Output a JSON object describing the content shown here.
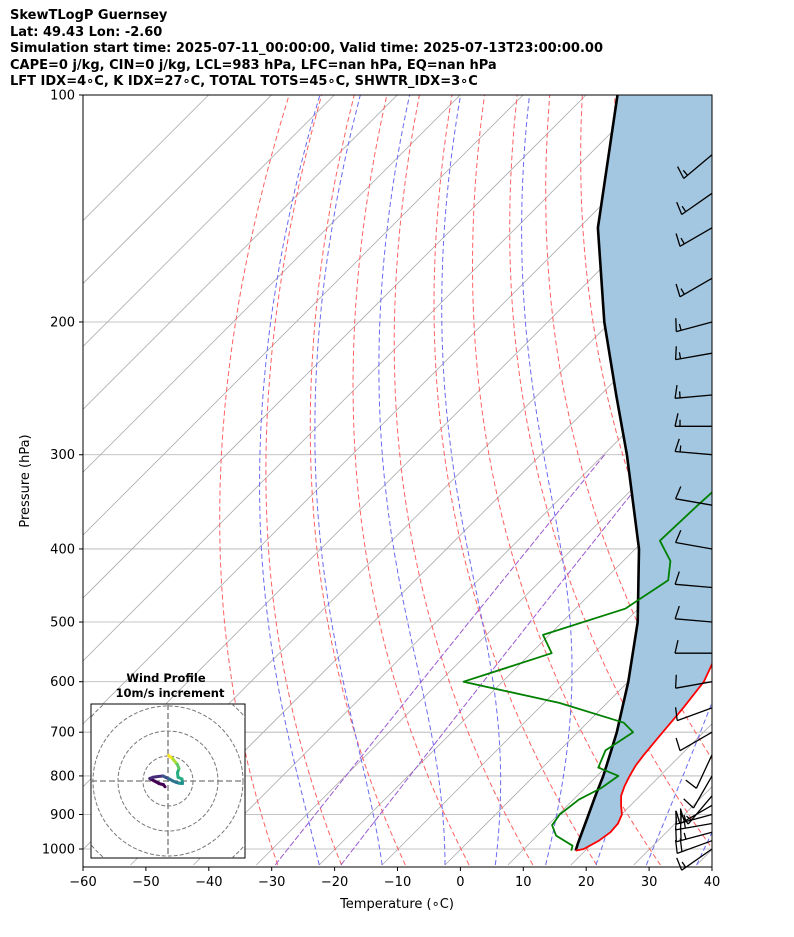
{
  "header": {
    "line1": "SkewTLogP Guernsey",
    "line2": "Lat: 49.43   Lon: -2.60",
    "line3": "Simulation start time: 2025-07-11_00:00:00, Valid time: 2025-07-13T23:00:00.00",
    "line4": "CAPE=0 j/kg, CIN=0 j/kg, LCL=983 hPa, LFC=nan hPa, EQ=nan hPa",
    "line5": "LFT IDX=4∘C, K IDX=27∘C, TOTAL TOTS=45∘C, SHWTR_IDX=3∘C"
  },
  "colors": {
    "temperature": "#ff0000",
    "dewpoint": "#008000",
    "parcel": "#000000",
    "shading": "#a3c7e0",
    "dry_adiabat": "#ff6060",
    "moist_adiabat": "#6a6af0",
    "mixing_ratio": "#9b59d0",
    "isotherm": "#aaaaaa"
  },
  "chart_data": {
    "type": "line",
    "title": "SkewTLogP Guernsey",
    "xlabel": "Temperature (∘C)",
    "ylabel": "Pressure (hPa)",
    "xlim": [
      -60,
      40
    ],
    "ylim": [
      1050,
      100
    ],
    "x_ticks": [
      -60,
      -50,
      -40,
      -30,
      -20,
      -10,
      0,
      10,
      20,
      30,
      40
    ],
    "x_tick_labels": [
      "−60",
      "−50",
      "−40",
      "−30",
      "−20",
      "−10",
      "0",
      "10",
      "20",
      "30",
      "40"
    ],
    "y_ticks": [
      100,
      200,
      300,
      400,
      500,
      600,
      700,
      800,
      900,
      1000
    ],
    "y_tick_labels": [
      "100",
      "200",
      "300",
      "400",
      "500",
      "600",
      "700",
      "800",
      "900",
      "1000"
    ],
    "grid": true,
    "series": [
      {
        "name": "Temperature",
        "points": [
          [
            1005,
            18.5
          ],
          [
            1000,
            19.5
          ],
          [
            975,
            20.6
          ],
          [
            950,
            21.1
          ],
          [
            925,
            20.9
          ],
          [
            900,
            20.1
          ],
          [
            875,
            18.5
          ],
          [
            850,
            17.0
          ],
          [
            825,
            16.0
          ],
          [
            800,
            15.2
          ],
          [
            775,
            14.5
          ],
          [
            750,
            14.1
          ],
          [
            700,
            13.5
          ],
          [
            650,
            12.9
          ],
          [
            600,
            12.0
          ],
          [
            550,
            9.6
          ],
          [
            500,
            6.6
          ],
          [
            450,
            3.3
          ],
          [
            400,
            -0.2
          ],
          [
            350,
            -4.3
          ],
          [
            300,
            -9.0
          ],
          [
            275,
            -11.7
          ],
          [
            250,
            -13.1
          ],
          [
            220,
            -14.3
          ],
          [
            200,
            -13.6
          ],
          [
            180,
            -12.1
          ],
          [
            165,
            -8.2
          ],
          [
            150,
            -6.2
          ],
          [
            140,
            -6.3
          ],
          [
            125,
            -5.6
          ],
          [
            110,
            -4.6
          ],
          [
            100,
            -3.9
          ]
        ]
      },
      {
        "name": "Dewpoint",
        "points": [
          [
            1005,
            17.8
          ],
          [
            990,
            17.2
          ],
          [
            960,
            13.0
          ],
          [
            930,
            10.7
          ],
          [
            900,
            10.2
          ],
          [
            860,
            10.9
          ],
          [
            830,
            12.6
          ],
          [
            800,
            13.4
          ],
          [
            780,
            8.9
          ],
          [
            740,
            7.3
          ],
          [
            700,
            8.8
          ],
          [
            680,
            5.8
          ],
          [
            640,
            -7.6
          ],
          [
            600,
            -26.2
          ],
          [
            550,
            -16.7
          ],
          [
            520,
            -21.0
          ],
          [
            480,
            -12.1
          ],
          [
            440,
            -9.8
          ],
          [
            415,
            -12.5
          ],
          [
            390,
            -17.4
          ],
          [
            350,
            -17.0
          ],
          [
            320,
            -16.5
          ],
          [
            300,
            -17.7
          ],
          [
            280,
            -20.1
          ],
          [
            260,
            -21.3
          ],
          [
            235,
            -20.8
          ],
          [
            210,
            -17.4
          ],
          [
            190,
            -18.8
          ],
          [
            175,
            -24.9
          ],
          [
            155,
            -22.4
          ],
          [
            140,
            -23.9
          ],
          [
            125,
            -21.5
          ],
          [
            112,
            -19.4
          ],
          [
            100,
            -19.7
          ]
        ]
      },
      {
        "name": "Parcel",
        "points": [
          [
            1005,
            18.5
          ],
          [
            983,
            17.7
          ],
          [
            900,
            14.8
          ],
          [
            850,
            12.9
          ],
          [
            800,
            11.0
          ],
          [
            750,
            8.7
          ],
          [
            700,
            6.2
          ],
          [
            600,
            0.0
          ],
          [
            500,
            -8.0
          ],
          [
            400,
            -19.4
          ],
          [
            300,
            -36.3
          ],
          [
            250,
            -47.5
          ],
          [
            200,
            -61.0
          ],
          [
            150,
            -77.0
          ],
          [
            100,
            -95.0
          ]
        ]
      }
    ],
    "wind_barbs": [
      {
        "p": 1000,
        "spd": 15,
        "dir": 235
      },
      {
        "p": 975,
        "spd": 20,
        "dir": 250
      },
      {
        "p": 950,
        "spd": 25,
        "dir": 255
      },
      {
        "p": 925,
        "spd": 25,
        "dir": 260
      },
      {
        "p": 900,
        "spd": 25,
        "dir": 255
      },
      {
        "p": 875,
        "spd": 20,
        "dir": 240
      },
      {
        "p": 850,
        "spd": 15,
        "dir": 220
      },
      {
        "p": 800,
        "spd": 10,
        "dir": 210
      },
      {
        "p": 750,
        "spd": 10,
        "dir": 205
      },
      {
        "p": 700,
        "spd": 10,
        "dir": 240
      },
      {
        "p": 650,
        "spd": 10,
        "dir": 250
      },
      {
        "p": 600,
        "spd": 10,
        "dir": 260
      },
      {
        "p": 550,
        "spd": 10,
        "dir": 270
      },
      {
        "p": 500,
        "spd": 10,
        "dir": 275
      },
      {
        "p": 450,
        "spd": 10,
        "dir": 275
      },
      {
        "p": 400,
        "spd": 10,
        "dir": 280
      },
      {
        "p": 350,
        "spd": 10,
        "dir": 280
      },
      {
        "p": 300,
        "spd": 15,
        "dir": 275
      },
      {
        "p": 275,
        "spd": 15,
        "dir": 270
      },
      {
        "p": 250,
        "spd": 15,
        "dir": 265
      },
      {
        "p": 220,
        "spd": 15,
        "dir": 260
      },
      {
        "p": 200,
        "spd": 15,
        "dir": 255
      },
      {
        "p": 175,
        "spd": 15,
        "dir": 240
      },
      {
        "p": 150,
        "spd": 15,
        "dir": 240
      },
      {
        "p": 135,
        "spd": 15,
        "dir": 235
      },
      {
        "p": 120,
        "spd": 15,
        "dir": 230
      }
    ],
    "hodograph": {
      "title": "Wind Profile",
      "subtitle": "10m/s increment",
      "ring_step_ms": 10,
      "points_uv": [
        [
          -1.2,
          -2.3
        ],
        [
          -1.8,
          -1.5
        ],
        [
          -3.6,
          -1.0
        ],
        [
          -7.3,
          1.0
        ],
        [
          -6.0,
          1.5
        ],
        [
          -4.0,
          1.8
        ],
        [
          -2.0,
          2.0
        ],
        [
          -1.0,
          1.5
        ],
        [
          0.5,
          0.8
        ],
        [
          2.0,
          0.0
        ],
        [
          3.2,
          -0.5
        ],
        [
          4.6,
          -0.9
        ],
        [
          5.8,
          -1.0
        ],
        [
          5.6,
          0.8
        ],
        [
          4.0,
          1.5
        ],
        [
          3.8,
          3.3
        ],
        [
          4.4,
          5.0
        ],
        [
          3.8,
          6.5
        ],
        [
          3.0,
          7.5
        ],
        [
          2.2,
          8.5
        ],
        [
          1.8,
          9.0
        ],
        [
          1.2,
          9.4
        ],
        [
          0.6,
          9.8
        ],
        [
          0.3,
          10.3
        ]
      ]
    }
  }
}
